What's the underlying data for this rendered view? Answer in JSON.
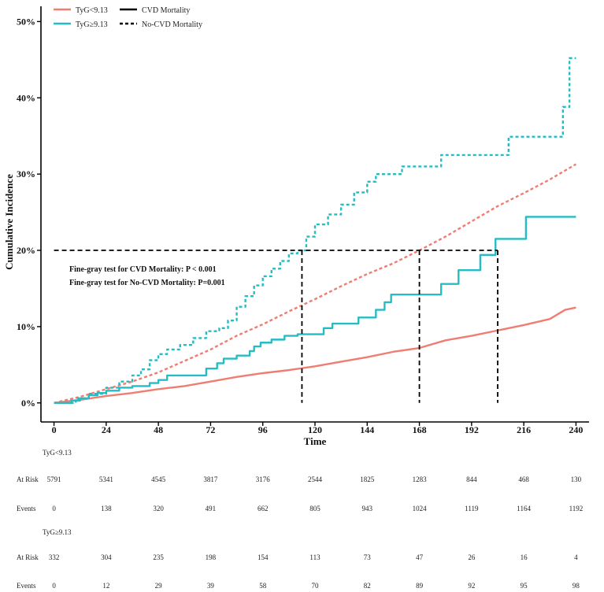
{
  "chart_data": {
    "type": "line",
    "xlabel": "Time",
    "ylabel": "Cumulative Incidence",
    "xlim": [
      -6,
      246
    ],
    "ylim": [
      -2.5,
      52
    ],
    "x_ticks": [
      0,
      24,
      48,
      72,
      96,
      120,
      144,
      168,
      192,
      216,
      240
    ],
    "y_ticks": [
      0,
      10,
      20,
      30,
      40,
      50
    ],
    "y_tick_labels": [
      "0%",
      "10%",
      "20%",
      "30%",
      "40%",
      "50%"
    ],
    "colors": {
      "low": "#ef7d72",
      "high": "#26bcc4",
      "ref": "#000000"
    },
    "legend": {
      "groups": [
        {
          "label": "TyG<9.13",
          "color": "#ef7d72"
        },
        {
          "label": "TyG≥9.13",
          "color": "#26bcc4"
        }
      ],
      "styles": [
        {
          "label": "CVD Mortality",
          "dash": "solid"
        },
        {
          "label": "No-CVD Mortality",
          "dash": "dashed"
        }
      ]
    },
    "series": [
      {
        "name": "TyG<9.13 CVD Mortality",
        "group": "low",
        "style": "solid",
        "points": [
          [
            0,
            0
          ],
          [
            12,
            0.4
          ],
          [
            24,
            0.9
          ],
          [
            36,
            1.3
          ],
          [
            48,
            1.8
          ],
          [
            60,
            2.2
          ],
          [
            72,
            2.8
          ],
          [
            84,
            3.4
          ],
          [
            96,
            3.9
          ],
          [
            108,
            4.3
          ],
          [
            120,
            4.8
          ],
          [
            132,
            5.4
          ],
          [
            144,
            6.0
          ],
          [
            156,
            6.7
          ],
          [
            168,
            7.2
          ],
          [
            180,
            8.2
          ],
          [
            192,
            8.8
          ],
          [
            204,
            9.5
          ],
          [
            216,
            10.2
          ],
          [
            228,
            11.0
          ],
          [
            235,
            12.2
          ],
          [
            240,
            12.5
          ]
        ]
      },
      {
        "name": "TyG<9.13 No-CVD Mortality",
        "group": "low",
        "style": "dashed",
        "points": [
          [
            0,
            0
          ],
          [
            12,
            0.8
          ],
          [
            24,
            1.8
          ],
          [
            36,
            2.8
          ],
          [
            48,
            4.0
          ],
          [
            60,
            5.5
          ],
          [
            72,
            7.0
          ],
          [
            84,
            8.8
          ],
          [
            96,
            10.3
          ],
          [
            108,
            12.0
          ],
          [
            120,
            13.6
          ],
          [
            132,
            15.3
          ],
          [
            144,
            16.9
          ],
          [
            156,
            18.3
          ],
          [
            168,
            20.0
          ],
          [
            180,
            21.8
          ],
          [
            192,
            23.8
          ],
          [
            204,
            25.8
          ],
          [
            216,
            27.5
          ],
          [
            228,
            29.3
          ],
          [
            240,
            31.3
          ]
        ]
      },
      {
        "name": "TyG≥9.13 CVD Mortality",
        "group": "high",
        "style": "solid",
        "points": [
          [
            0,
            0
          ],
          [
            8,
            0.3
          ],
          [
            12,
            0.6
          ],
          [
            16,
            1.0
          ],
          [
            20,
            1.3
          ],
          [
            24,
            1.6
          ],
          [
            30,
            2.0
          ],
          [
            36,
            2.2
          ],
          [
            44,
            2.6
          ],
          [
            48,
            3.0
          ],
          [
            52,
            3.6
          ],
          [
            70,
            4.5
          ],
          [
            75,
            5.2
          ],
          [
            78,
            5.8
          ],
          [
            84,
            6.2
          ],
          [
            90,
            6.8
          ],
          [
            92,
            7.4
          ],
          [
            95,
            7.9
          ],
          [
            100,
            8.3
          ],
          [
            106,
            8.8
          ],
          [
            112,
            9.0
          ],
          [
            120,
            9.0
          ],
          [
            122,
            9.0
          ],
          [
            124,
            9.8
          ],
          [
            128,
            10.4
          ],
          [
            134,
            10.4
          ],
          [
            140,
            11.2
          ],
          [
            146,
            11.2
          ],
          [
            148,
            12.2
          ],
          [
            152,
            13.2
          ],
          [
            155,
            14.2
          ],
          [
            170,
            14.2
          ],
          [
            178,
            15.6
          ],
          [
            186,
            17.4
          ],
          [
            192,
            17.4
          ],
          [
            196,
            19.4
          ],
          [
            203,
            21.5
          ],
          [
            210,
            21.5
          ],
          [
            217,
            24.4
          ],
          [
            240,
            24.4
          ]
        ],
        "stepped": true
      },
      {
        "name": "TyG≥9.13 No-CVD Mortality",
        "group": "high",
        "style": "dashed",
        "points": [
          [
            0,
            0
          ],
          [
            10,
            0.6
          ],
          [
            16,
            1.2
          ],
          [
            24,
            2.0
          ],
          [
            30,
            2.8
          ],
          [
            36,
            3.6
          ],
          [
            40,
            4.4
          ],
          [
            44,
            5.6
          ],
          [
            48,
            6.4
          ],
          [
            52,
            7.0
          ],
          [
            58,
            7.6
          ],
          [
            64,
            8.5
          ],
          [
            70,
            9.4
          ],
          [
            76,
            9.8
          ],
          [
            80,
            10.8
          ],
          [
            84,
            12.6
          ],
          [
            88,
            14.0
          ],
          [
            92,
            15.4
          ],
          [
            96,
            16.6
          ],
          [
            100,
            17.6
          ],
          [
            104,
            18.6
          ],
          [
            108,
            19.6
          ],
          [
            112,
            20.0
          ],
          [
            116,
            21.8
          ],
          [
            120,
            23.4
          ],
          [
            126,
            24.7
          ],
          [
            132,
            26.0
          ],
          [
            138,
            27.6
          ],
          [
            144,
            29.0
          ],
          [
            148,
            30.0
          ],
          [
            156,
            30.0
          ],
          [
            160,
            31.0
          ],
          [
            168,
            31.0
          ],
          [
            178,
            32.5
          ],
          [
            204,
            32.5
          ],
          [
            209,
            34.9
          ],
          [
            218,
            34.9
          ],
          [
            230,
            34.9
          ],
          [
            234,
            38.8
          ],
          [
            236,
            38.8
          ],
          [
            237,
            45.2
          ],
          [
            240,
            45.2
          ]
        ],
        "stepped": true
      }
    ],
    "reference_lines": {
      "y_level": 20,
      "x_positions": [
        114,
        168,
        204
      ]
    },
    "annotations": [
      "Fine-gray test for CVD Mortality: P < 0.001",
      "Fine-gray test for No-CVD Mortality: P=0.001"
    ],
    "risk_table": {
      "times": [
        0,
        24,
        48,
        72,
        96,
        120,
        144,
        168,
        192,
        216,
        240
      ],
      "groups": [
        {
          "label": "TyG<9.13",
          "at_risk": [
            5791,
            5341,
            4545,
            3817,
            3176,
            2544,
            1825,
            1283,
            844,
            468,
            130
          ],
          "events": [
            0,
            138,
            320,
            491,
            662,
            805,
            943,
            1024,
            1119,
            1164,
            1192
          ]
        },
        {
          "label": "TyG≥9.13",
          "at_risk": [
            332,
            304,
            235,
            198,
            154,
            113,
            73,
            47,
            26,
            16,
            4
          ],
          "events": [
            0,
            12,
            29,
            39,
            58,
            70,
            82,
            89,
            92,
            95,
            98
          ]
        }
      ],
      "row_labels": {
        "at_risk": "At Risk",
        "events": "Events"
      }
    }
  }
}
